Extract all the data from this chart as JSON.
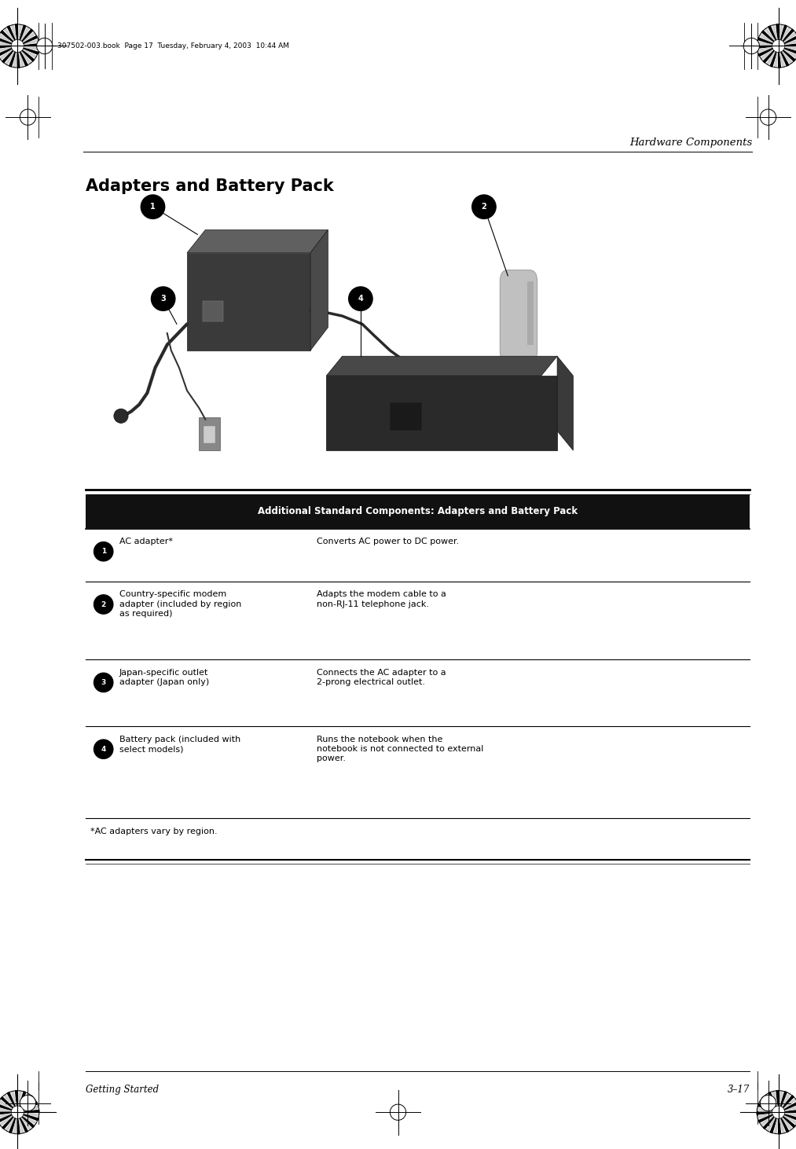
{
  "page_width": 10.13,
  "page_height": 14.62,
  "bg_color": "#ffffff",
  "header_right_text": "Hardware Components",
  "footer_left_text": "Getting Started",
  "footer_right_text": "3–17",
  "top_file_text": "307502-003.book  Page 17  Tuesday, February 4, 2003  10:44 AM",
  "section_title": "Adapters and Battery Pack",
  "table_title": "Additional Standard Components: Adapters and Battery Pack",
  "table_rows": [
    {
      "num": "①",
      "col1": "AC adapter*",
      "col2": "Converts AC power to DC power."
    },
    {
      "num": "②",
      "col1": "Country-specific modem\nadapter (included by region\nas required)",
      "col2": "Adapts the modem cable to a\nnon-RJ-11 telephone jack."
    },
    {
      "num": "③",
      "col1": "Japan-specific outlet\nadapter (Japan only)",
      "col2": "Connects the AC adapter to a\n2-prong electrical outlet."
    },
    {
      "num": "④",
      "col1": "Battery pack (included with\nselect models)",
      "col2": "Runs the notebook when the\nnotebook is not connected to external\npower."
    }
  ],
  "table_footnote": "*AC adapters vary by region.",
  "num_labels": [
    "1",
    "2",
    "3",
    "4"
  ]
}
